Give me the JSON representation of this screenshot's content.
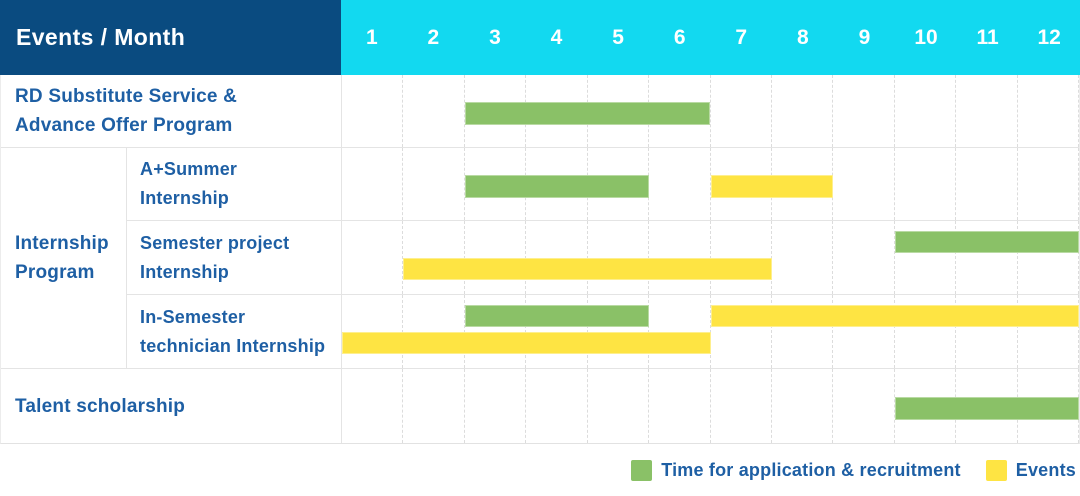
{
  "header": {
    "title": "Events / Month",
    "months": [
      "1",
      "2",
      "3",
      "4",
      "5",
      "6",
      "7",
      "8",
      "9",
      "10",
      "11",
      "12"
    ]
  },
  "group": {
    "label": "Internship Program",
    "label_lines": [
      "Internship",
      "Program"
    ]
  },
  "rows": [
    {
      "id": "rd-substitute-service",
      "label": "RD Substitute Service & Advance Offer Program",
      "label_lines": [
        "RD Substitute Service &",
        "Advance Offer Program"
      ],
      "lanes": [
        [
          {
            "color": "green",
            "start": 3,
            "end": 6
          }
        ]
      ]
    },
    {
      "id": "a-plus-summer-internship",
      "label": "A+Summer Internship",
      "label_lines": [
        "A+Summer",
        "Internship"
      ],
      "lanes": [
        [
          {
            "color": "green",
            "start": 3,
            "end": 5
          },
          {
            "color": "yellow",
            "start": 7,
            "end": 8
          }
        ]
      ]
    },
    {
      "id": "semester-project-internship",
      "label": "Semester project Internship",
      "label_lines": [
        "Semester project",
        "Internship"
      ],
      "lanes": [
        [
          {
            "color": "green",
            "start": 10,
            "end": 12
          }
        ],
        [
          {
            "color": "yellow",
            "start": 2,
            "end": 7
          }
        ]
      ]
    },
    {
      "id": "in-semester-technician-internship",
      "label": "In-Semester technician Internship",
      "label_lines": [
        "In-Semester",
        "technician Internship"
      ],
      "lanes": [
        [
          {
            "color": "green",
            "start": 3,
            "end": 5
          },
          {
            "color": "yellow",
            "start": 7,
            "end": 12
          }
        ],
        [
          {
            "color": "yellow",
            "start": 1,
            "end": 6
          }
        ]
      ]
    },
    {
      "id": "talent-scholarship",
      "label": "Talent scholarship",
      "label_lines": [
        "Talent scholarship"
      ],
      "lanes": [
        [
          {
            "color": "green",
            "start": 10,
            "end": 12
          }
        ]
      ]
    }
  ],
  "legend": {
    "items": [
      {
        "color": "green",
        "label": "Time for application & recruitment"
      },
      {
        "color": "yellow",
        "label": "Events"
      }
    ]
  },
  "colors": {
    "header_bg": "#0a4b80",
    "months_bg": "#12d9f0",
    "header_text": "#ffffff",
    "label_text": "#1e5fa4",
    "green": "#8ac167",
    "yellow": "#fee443",
    "grid_line": "#e4e4e4"
  },
  "chart_data": {
    "type": "bar",
    "subtype": "gantt-timeline",
    "title": "Events / Month",
    "x_unit": "month",
    "x_range": [
      1,
      12
    ],
    "x_ticks": [
      1,
      2,
      3,
      4,
      5,
      6,
      7,
      8,
      9,
      10,
      11,
      12
    ],
    "grid": true,
    "legend_position": "bottom-right",
    "legend": {
      "green": "Time for application & recruitment",
      "yellow": "Events"
    },
    "tasks": [
      {
        "row": "RD Substitute Service & Advance Offer Program",
        "group": "",
        "category": "Time for application & recruitment",
        "color": "green",
        "start_month": 3,
        "end_month": 6
      },
      {
        "row": "A+Summer Internship",
        "group": "Internship Program",
        "category": "Time for application & recruitment",
        "color": "green",
        "start_month": 3,
        "end_month": 5
      },
      {
        "row": "A+Summer Internship",
        "group": "Internship Program",
        "category": "Events",
        "color": "yellow",
        "start_month": 7,
        "end_month": 8
      },
      {
        "row": "Semester project Internship",
        "group": "Internship Program",
        "category": "Time for application & recruitment",
        "color": "green",
        "start_month": 10,
        "end_month": 12
      },
      {
        "row": "Semester project Internship",
        "group": "Internship Program",
        "category": "Events",
        "color": "yellow",
        "start_month": 2,
        "end_month": 7
      },
      {
        "row": "In-Semester technician Internship",
        "group": "Internship Program",
        "category": "Time for application & recruitment",
        "color": "green",
        "start_month": 3,
        "end_month": 5
      },
      {
        "row": "In-Semester technician Internship",
        "group": "Internship Program",
        "category": "Events",
        "color": "yellow",
        "start_month": 7,
        "end_month": 12
      },
      {
        "row": "In-Semester technician Internship",
        "group": "Internship Program",
        "category": "Events",
        "color": "yellow",
        "start_month": 1,
        "end_month": 6
      },
      {
        "row": "Talent scholarship",
        "group": "",
        "category": "Time for application & recruitment",
        "color": "green",
        "start_month": 10,
        "end_month": 12
      }
    ]
  }
}
